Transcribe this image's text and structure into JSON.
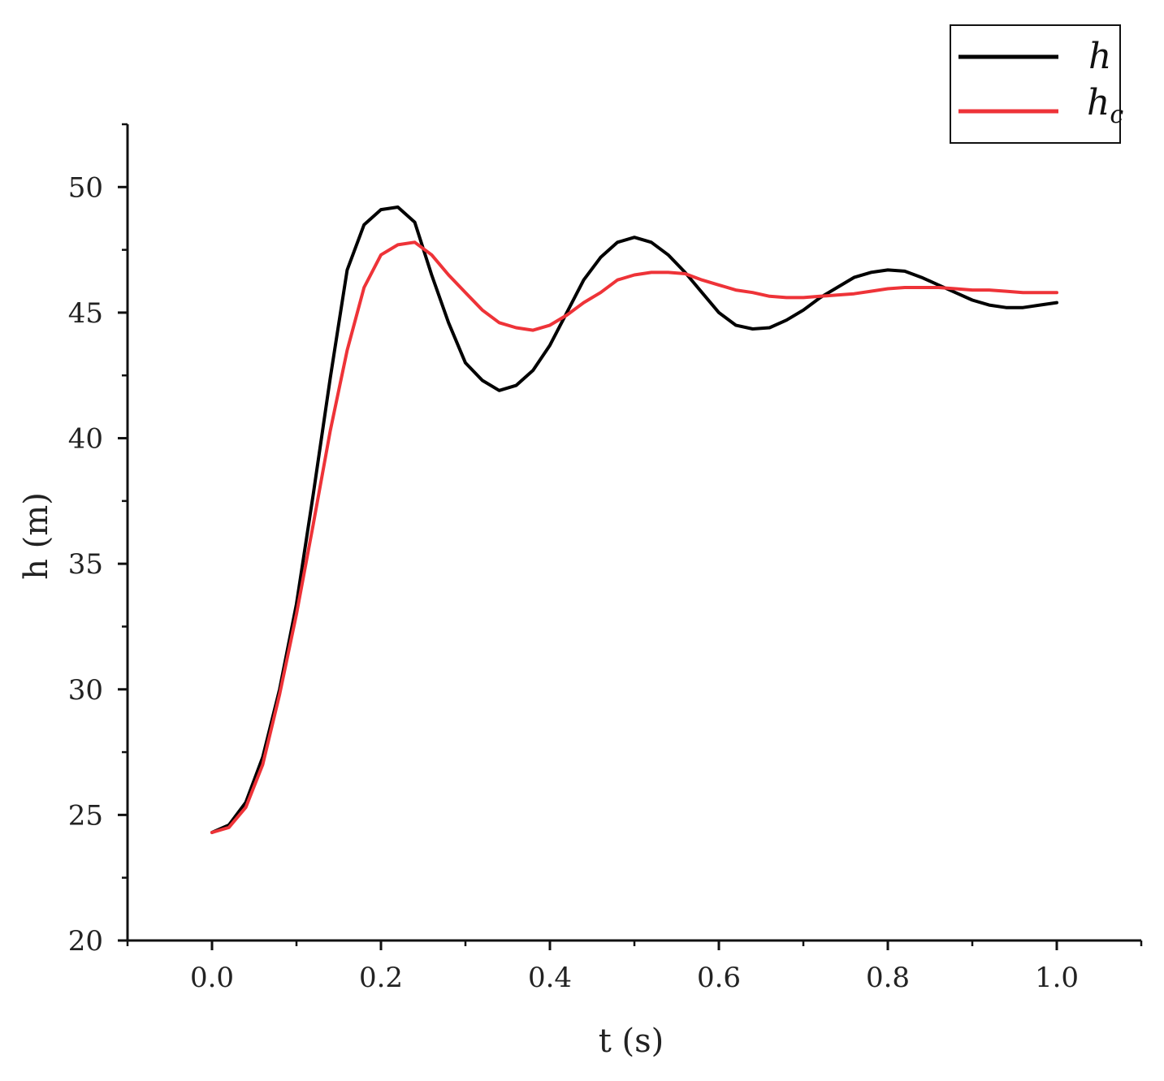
{
  "chart_data": {
    "type": "line",
    "xlabel": "t (s)",
    "ylabel": "h (m)",
    "xlim": [
      -0.1,
      1.1
    ],
    "ylim": [
      20,
      52.5
    ],
    "xticks": [
      0.0,
      0.2,
      0.4,
      0.6,
      0.8,
      1.0
    ],
    "xtick_labels": [
      "0.0",
      "0.2",
      "0.4",
      "0.6",
      "0.8",
      "1.0"
    ],
    "yticks": [
      20,
      25,
      30,
      35,
      40,
      45,
      50
    ],
    "ytick_labels": [
      "20",
      "25",
      "30",
      "35",
      "40",
      "45",
      "50"
    ],
    "grid": false,
    "legend_position": "top-right",
    "series": [
      {
        "name": "h",
        "legend_main": "h",
        "legend_sub": "",
        "color": "#000000",
        "x": [
          0.0,
          0.02,
          0.04,
          0.06,
          0.08,
          0.1,
          0.12,
          0.14,
          0.16,
          0.18,
          0.2,
          0.22,
          0.24,
          0.26,
          0.28,
          0.3,
          0.32,
          0.34,
          0.36,
          0.38,
          0.4,
          0.42,
          0.44,
          0.46,
          0.48,
          0.5,
          0.52,
          0.54,
          0.56,
          0.58,
          0.6,
          0.62,
          0.64,
          0.66,
          0.68,
          0.7,
          0.72,
          0.74,
          0.76,
          0.78,
          0.8,
          0.82,
          0.84,
          0.86,
          0.88,
          0.9,
          0.92,
          0.94,
          0.96,
          0.98,
          1.0
        ],
        "y": [
          24.3,
          24.6,
          25.5,
          27.3,
          30.0,
          33.4,
          37.8,
          42.4,
          46.7,
          48.5,
          49.1,
          49.2,
          48.6,
          46.5,
          44.6,
          43.0,
          42.3,
          41.9,
          42.1,
          42.7,
          43.7,
          45.0,
          46.3,
          47.2,
          47.8,
          48.0,
          47.8,
          47.3,
          46.6,
          45.8,
          45.0,
          44.5,
          44.35,
          44.4,
          44.7,
          45.1,
          45.6,
          46.0,
          46.4,
          46.6,
          46.7,
          46.65,
          46.4,
          46.1,
          45.8,
          45.5,
          45.3,
          45.2,
          45.2,
          45.3,
          45.4
        ]
      },
      {
        "name": "hc",
        "legend_main": "h",
        "legend_sub": "c",
        "color": "#ee3338",
        "x": [
          0.0,
          0.02,
          0.04,
          0.06,
          0.08,
          0.1,
          0.12,
          0.14,
          0.16,
          0.18,
          0.2,
          0.22,
          0.24,
          0.26,
          0.28,
          0.3,
          0.32,
          0.34,
          0.36,
          0.38,
          0.4,
          0.42,
          0.44,
          0.46,
          0.48,
          0.5,
          0.52,
          0.54,
          0.56,
          0.58,
          0.6,
          0.62,
          0.64,
          0.66,
          0.68,
          0.7,
          0.72,
          0.74,
          0.76,
          0.78,
          0.8,
          0.82,
          0.84,
          0.86,
          0.88,
          0.9,
          0.92,
          0.94,
          0.96,
          0.98,
          1.0
        ],
        "y": [
          24.3,
          24.5,
          25.3,
          27.0,
          29.8,
          33.0,
          36.6,
          40.3,
          43.5,
          46.0,
          47.3,
          47.7,
          47.8,
          47.3,
          46.5,
          45.8,
          45.1,
          44.6,
          44.4,
          44.3,
          44.5,
          44.9,
          45.4,
          45.8,
          46.3,
          46.5,
          46.6,
          46.6,
          46.55,
          46.3,
          46.1,
          45.9,
          45.8,
          45.65,
          45.6,
          45.6,
          45.65,
          45.7,
          45.75,
          45.85,
          45.95,
          46.0,
          46.0,
          46.0,
          45.95,
          45.9,
          45.9,
          45.85,
          45.8,
          45.8,
          45.8
        ]
      }
    ]
  }
}
